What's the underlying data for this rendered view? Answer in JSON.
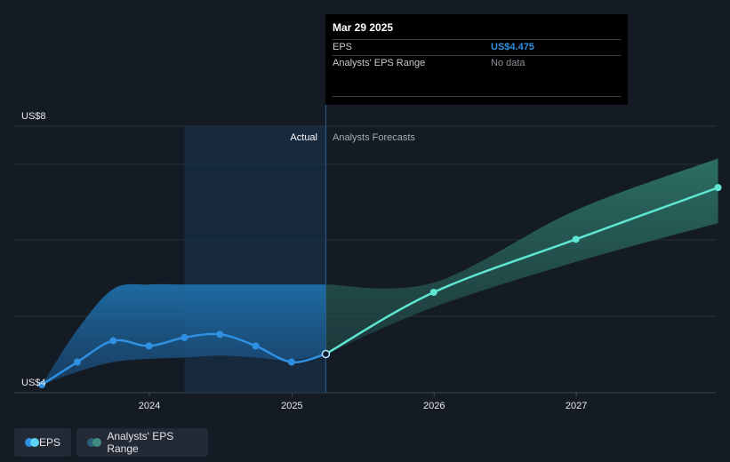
{
  "tooltip": {
    "date": "Mar 29 2025",
    "rows": [
      {
        "label": "EPS",
        "value": "US$4.475"
      },
      {
        "label": "Analysts' EPS Range",
        "value": "No data"
      }
    ]
  },
  "legend": [
    {
      "label": "EPS",
      "color": "#2f8fe0",
      "color2": "#5dd3f3"
    },
    {
      "label": "Analysts' EPS Range",
      "color": "#2c5e7a",
      "color2": "#3f8a80"
    }
  ],
  "chart_data": {
    "type": "line",
    "y_tick_labels": [
      "US$8",
      "US$4"
    ],
    "ylim": [
      4,
      8
    ],
    "x_tick_labels": [
      "2024",
      "2025",
      "2026",
      "2027"
    ],
    "section_labels": {
      "actual": "Actual",
      "forecast": "Analysts Forecasts"
    },
    "grid": true,
    "legend_position": "bottom-left",
    "series": [
      {
        "name": "EPS",
        "kind": "actual",
        "color": "#2f8fe0",
        "x": [
          "2023-03-31",
          "2023-06-30",
          "2023-09-30",
          "2023-12-31",
          "2024-03-31",
          "2024-06-30",
          "2024-09-30",
          "2024-12-31",
          "2025-03-29"
        ],
        "y": [
          4.0,
          4.35,
          4.68,
          4.6,
          4.73,
          4.78,
          4.6,
          4.35,
          4.475
        ]
      },
      {
        "name": "EPS",
        "kind": "forecast",
        "color": "#5ee6d3",
        "x": [
          "2025-03-29",
          "2025-12-31",
          "2026-12-31",
          "2027-12-31"
        ],
        "y": [
          4.475,
          5.43,
          6.25,
          7.05
        ]
      }
    ],
    "range_band": {
      "name": "Analysts' EPS Range",
      "actual_color": "#1e6fa8",
      "forecast_color": "#2f7d6f",
      "x": [
        "2023-03-31",
        "2023-06-30",
        "2023-09-30",
        "2023-12-31",
        "2024-03-31",
        "2024-06-30",
        "2024-09-30",
        "2024-12-31",
        "2025-03-29",
        "2025-12-31",
        "2026-12-31",
        "2027-12-31"
      ],
      "upper": [
        4.0,
        4.85,
        5.48,
        5.55,
        5.55,
        5.55,
        5.55,
        5.55,
        5.55,
        5.58,
        6.7,
        7.5
      ],
      "lower": [
        4.0,
        4.2,
        4.35,
        4.4,
        4.42,
        4.45,
        4.42,
        4.38,
        4.475,
        5.2,
        5.9,
        6.5
      ]
    },
    "highlight_date": "2025-03-29",
    "shaded_period_start": "2024-03-31"
  }
}
